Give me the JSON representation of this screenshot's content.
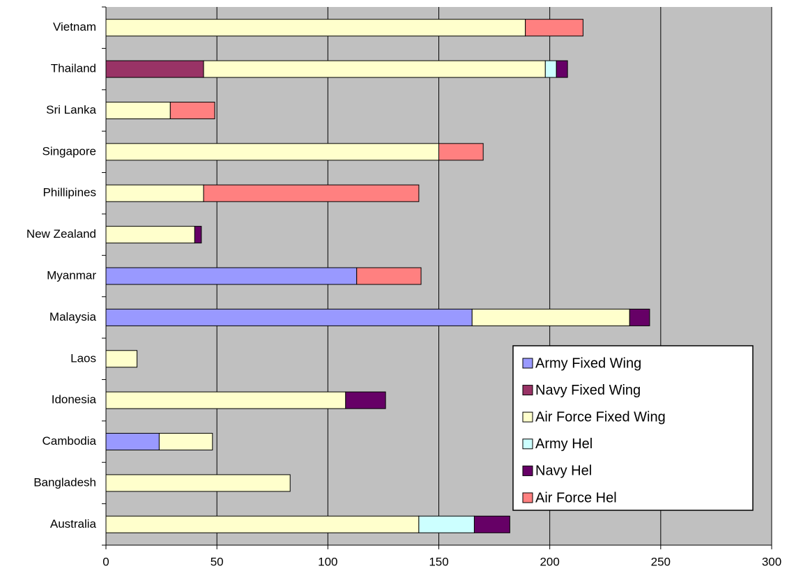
{
  "chart_data": {
    "type": "stacked-bar-horizontal",
    "categories": [
      "Australia",
      "Bangladesh",
      "Cambodia",
      "Idonesia",
      "Laos",
      "Malaysia",
      "Myanmar",
      "New Zealand",
      "Phillipines",
      "Singapore",
      "Sri Lanka",
      "Thailand",
      "Vietnam"
    ],
    "series": [
      {
        "name": "Army Fixed Wing",
        "color": "#9999ff",
        "values": [
          0,
          0,
          24,
          0,
          0,
          165,
          113,
          0,
          0,
          0,
          0,
          0,
          0
        ]
      },
      {
        "name": "Navy Fixed Wing",
        "color": "#993366",
        "values": [
          0,
          0,
          0,
          0,
          0,
          0,
          0,
          0,
          0,
          0,
          0,
          44,
          0
        ]
      },
      {
        "name": "Air Force Fixed Wing",
        "color": "#ffffcc",
        "values": [
          141,
          83,
          24,
          108,
          14,
          71,
          0,
          40,
          44,
          150,
          29,
          154,
          189
        ]
      },
      {
        "name": "Army Hel",
        "color": "#ccffff",
        "values": [
          25,
          0,
          0,
          0,
          0,
          0,
          0,
          0,
          0,
          0,
          0,
          5,
          0
        ]
      },
      {
        "name": "Navy Hel",
        "color": "#660066",
        "values": [
          16,
          0,
          0,
          18,
          0,
          9,
          0,
          3,
          0,
          0,
          0,
          5,
          0
        ]
      },
      {
        "name": "Air Force Hel",
        "color": "#ff8080",
        "values": [
          0,
          0,
          0,
          0,
          0,
          0,
          29,
          0,
          97,
          20,
          20,
          0,
          26
        ]
      }
    ],
    "xlim": [
      0,
      300
    ],
    "xticks": [
      0,
      50,
      100,
      150,
      200,
      250,
      300
    ],
    "grid": true,
    "legend": "lower-right"
  }
}
